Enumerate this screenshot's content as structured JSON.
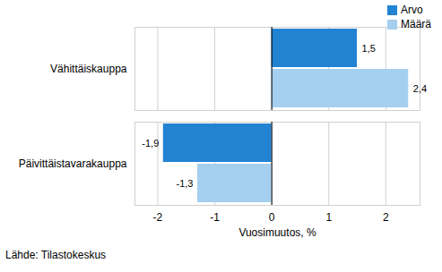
{
  "chart_data": {
    "type": "bar",
    "orientation": "horizontal",
    "categories": [
      "Vähittäiskauppa",
      "Päivittäistavarakauppa"
    ],
    "series": [
      {
        "name": "Arvo",
        "color": "#2383d3",
        "values": [
          1.5,
          -1.9
        ],
        "value_labels": [
          "1,5",
          "-1,9"
        ]
      },
      {
        "name": "Määrä",
        "color": "#a5cfef",
        "values": [
          2.4,
          -1.3
        ],
        "value_labels": [
          "2,4",
          "-1,3"
        ]
      }
    ],
    "x_label": "Vuosimuutos, %",
    "xlim": [
      -2.4,
      2.6
    ],
    "xticks": [
      -2,
      -1,
      0,
      1,
      2
    ],
    "grid": true,
    "legend": "upper right",
    "data_labels": true,
    "caption": "Lähde: Tilastokeskus"
  }
}
